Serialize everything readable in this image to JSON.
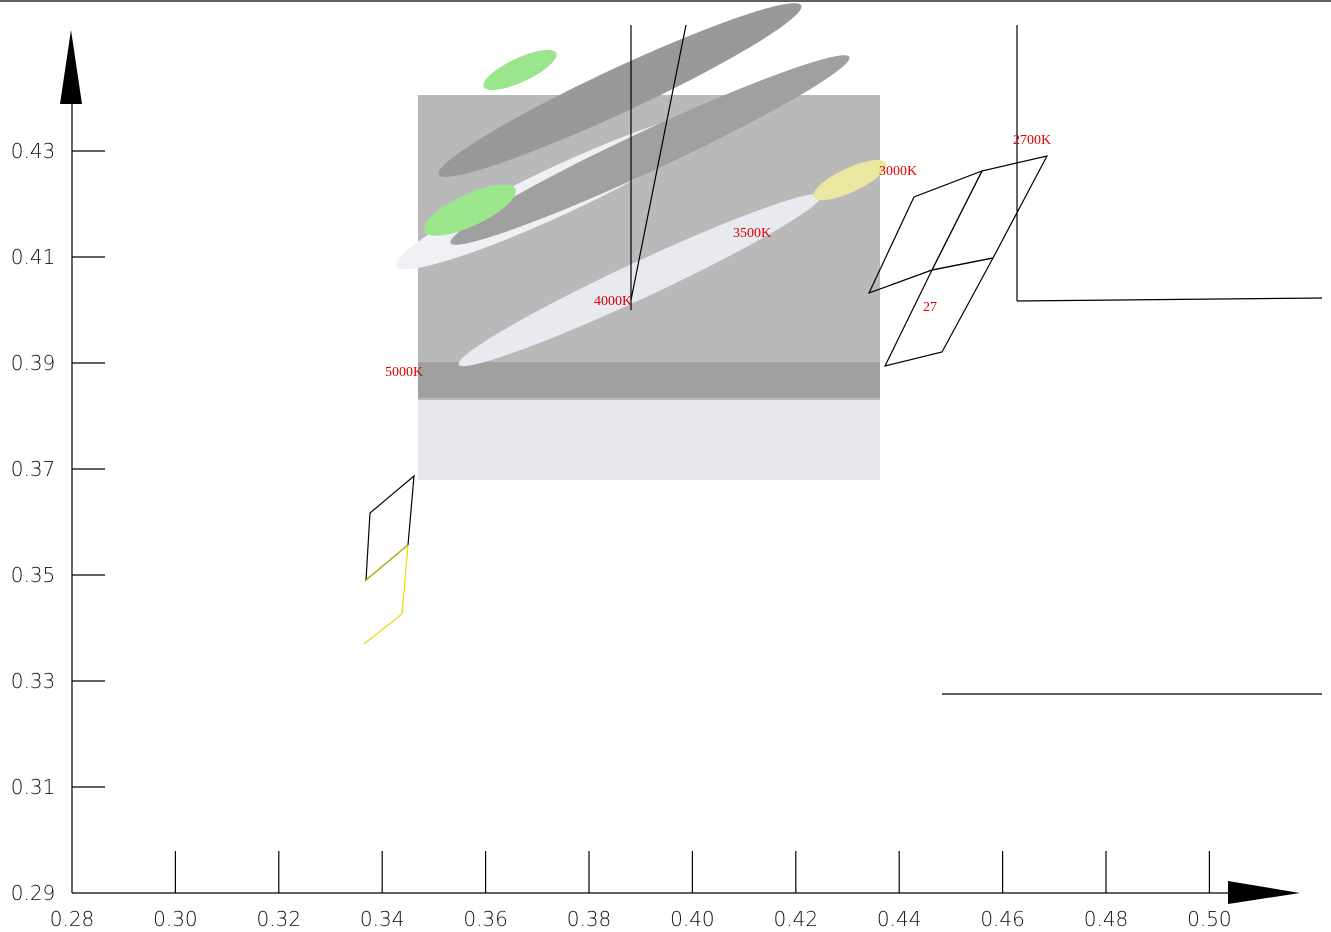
{
  "x_axis": {
    "ticks": [
      "0.28",
      "0.30",
      "0.32",
      "0.34",
      "0.36",
      "0.38",
      "0.40",
      "0.42",
      "0.44",
      "0.46",
      "0.48",
      "0.50"
    ]
  },
  "y_axis": {
    "ticks": [
      "0.29",
      "0.31",
      "0.33",
      "0.35",
      "0.37",
      "0.39",
      "0.41",
      "0.43"
    ]
  },
  "labels": [
    "2700K",
    "3000K",
    "3500K",
    "4000K",
    "5000K",
    "27"
  ]
}
